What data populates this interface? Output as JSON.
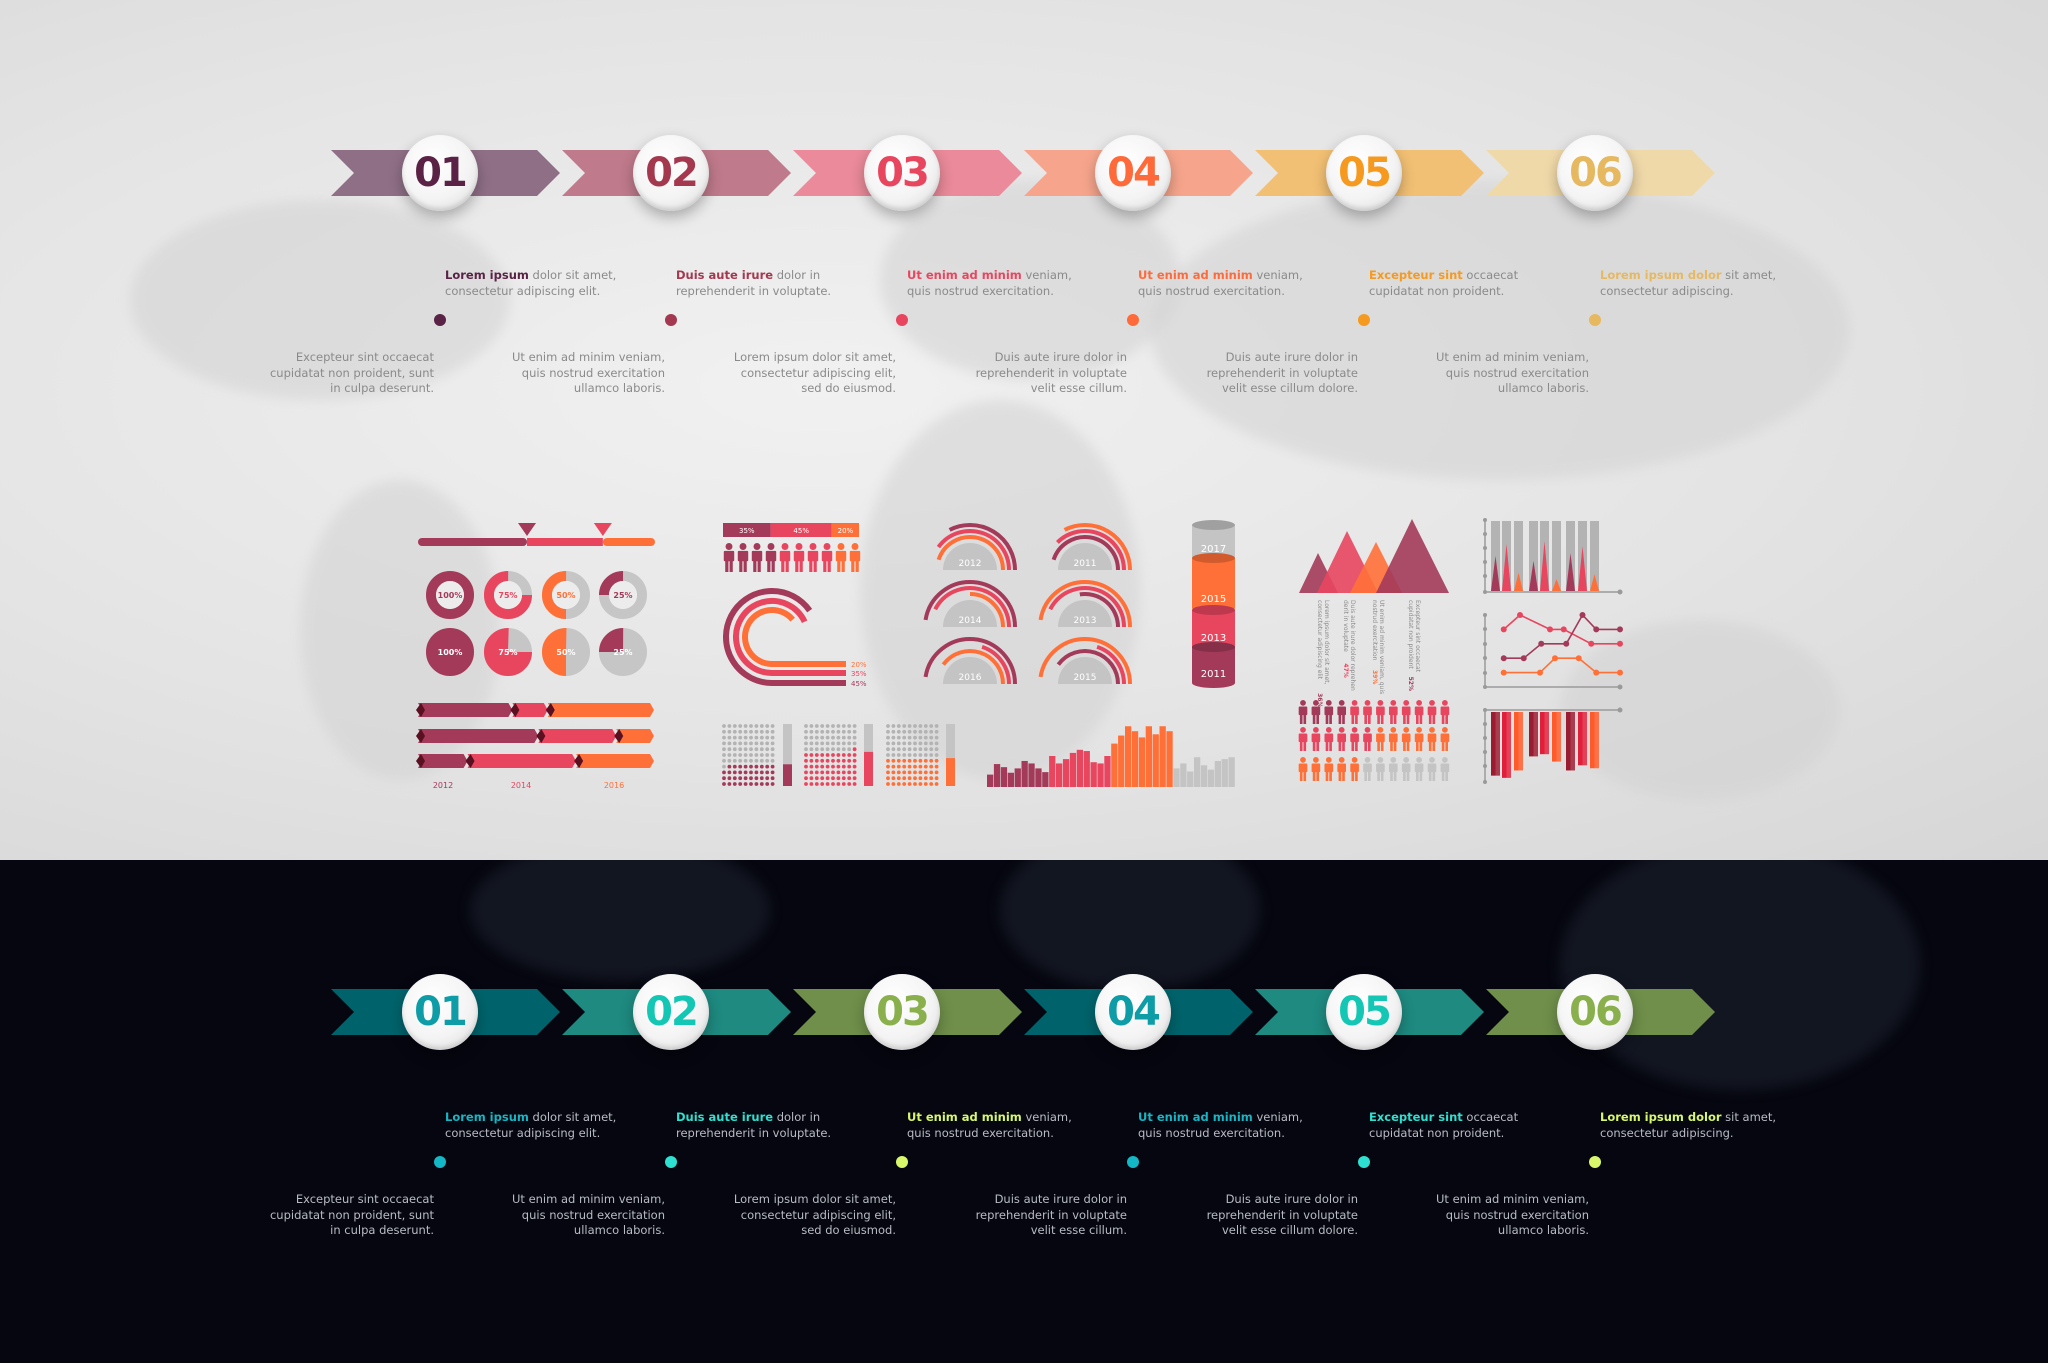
{
  "colors": {
    "dark": "#a33a5a",
    "pink": "#e8465f",
    "orange": "#ff7038",
    "gray": "#c4c4c4",
    "light_bg": "#e6e6e6",
    "dark_bg": "#05060f"
  },
  "light_timeline": {
    "steps": [
      {
        "num": "01",
        "arrow": "#8f6f86",
        "accent": "#5a2346",
        "bold": "Lorem ipsum",
        "rest": " dolor sit amet,\nconsectetur adipiscing elit.",
        "lower": "Excepteur sint occaecat\ncupidatat non proident, sunt\nin culpa deserunt."
      },
      {
        "num": "02",
        "arrow": "#bf7a8b",
        "accent": "#a3384f",
        "bold": "Duis aute irure",
        "rest": " dolor in\nreprehenderit in voluptate.",
        "lower": "Ut enim ad minim veniam,\nquis nostrud exercitation\nullamco laboris."
      },
      {
        "num": "03",
        "arrow": "#ea8a9a",
        "accent": "#e8465f",
        "bold": "Ut enim ad minim",
        "rest": " veniam,\nquis nostrud exercitation.",
        "lower": "Lorem ipsum dolor sit amet,\nconsectetur adipiscing elit,\nsed do eiusmod."
      },
      {
        "num": "04",
        "arrow": "#f6a58c",
        "accent": "#ff6a3a",
        "bold": "Ut enim ad minim",
        "rest": " veniam,\nquis nostrud exercitation.",
        "lower": "Duis aute irure dolor in\nreprehenderit in voluptate\nvelit esse cillum."
      },
      {
        "num": "05",
        "arrow": "#f2c074",
        "accent": "#f59a1e",
        "bold": "Excepteur sint",
        "rest": " occaecat\ncupidatat non proident.",
        "lower": "Duis aute irure dolor in\nreprehenderit in voluptate\nvelit esse cillum dolore."
      },
      {
        "num": "06",
        "arrow": "#f0d9a9",
        "accent": "#e6b860",
        "bold": "Lorem ipsum dolor",
        "rest": " sit amet,\nconsectetur adipiscing.",
        "lower": "Ut enim ad minim veniam,\nquis nostrud exercitation\nullamco laboris."
      }
    ]
  },
  "dark_timeline": {
    "steps": [
      {
        "num": "01",
        "arrow": "#00636b",
        "accent": "#0e9ca6",
        "text_accent": "#13b7c5",
        "bold": "Lorem ipsum",
        "rest": " dolor sit amet,\nconsectetur adipiscing elit.",
        "lower": "Excepteur sint occaecat\ncupidatat non proident, sunt\nin culpa deserunt."
      },
      {
        "num": "02",
        "arrow": "#1e8a80",
        "accent": "#14c7b4",
        "text_accent": "#2ee0d0",
        "bold": "Duis aute irure",
        "rest": " dolor in\nreprehenderit in voluptate.",
        "lower": "Ut enim ad minim veniam,\nquis nostrud exercitation\nullamco laboris."
      },
      {
        "num": "03",
        "arrow": "#6f8f4a",
        "accent": "#8ab04e",
        "text_accent": "#d9f76b",
        "bold": "Ut enim ad minim",
        "rest": " veniam,\nquis nostrud exercitation.",
        "lower": "Lorem ipsum dolor sit amet,\nconsectetur adipiscing elit,\nsed do eiusmod."
      },
      {
        "num": "04",
        "arrow": "#00636b",
        "accent": "#0e9ca6",
        "text_accent": "#13b7c5",
        "bold": "Ut enim ad minim",
        "rest": " veniam,\nquis nostrud exercitation.",
        "lower": "Duis aute irure dolor in\nreprehenderit in voluptate\nvelit esse cillum."
      },
      {
        "num": "05",
        "arrow": "#1e8a80",
        "accent": "#14c7b4",
        "text_accent": "#2ee0d0",
        "bold": "Excepteur sint",
        "rest": " occaecat\ncupidatat non proident.",
        "lower": "Duis aute irure dolor in\nreprehenderit in voluptate\nvelit esse cillum dolore."
      },
      {
        "num": "06",
        "arrow": "#6f8f4a",
        "accent": "#8ab04e",
        "text_accent": "#d9f76b",
        "bold": "Lorem ipsum dolor",
        "rest": " sit amet,\nconsectetur adipiscing.",
        "lower": "Ut enim ad minim veniam,\nquis nostrud exercitation\nullamco laboris."
      }
    ]
  },
  "chart_data": [
    {
      "id": "slider",
      "type": "bar",
      "segments": [
        46,
        32,
        22
      ],
      "markers": 2
    },
    {
      "id": "donuts",
      "type": "pie",
      "style": "donut",
      "values": [
        100,
        75,
        50,
        25
      ],
      "labels": [
        "100%",
        "75%",
        "50%",
        "25%"
      ]
    },
    {
      "id": "pies",
      "type": "pie",
      "values": [
        100,
        75,
        50,
        25
      ],
      "labels": [
        "100%",
        "75%",
        "50%",
        "25%"
      ]
    },
    {
      "id": "stacked-arrows",
      "type": "bar",
      "orientation": "horizontal",
      "stacked": true,
      "rows": [
        [
          40,
          15,
          45
        ],
        [
          51,
          33,
          16
        ],
        [
          21,
          46,
          33
        ]
      ],
      "tick_labels": [
        "2012",
        "2014",
        "2016"
      ]
    },
    {
      "id": "people-bar",
      "type": "bar",
      "stacked": true,
      "values": [
        35,
        45,
        20
      ],
      "labels": [
        "35%",
        "45%",
        "20%"
      ],
      "people_colors": [
        "dark",
        "dark",
        "dark",
        "dark",
        "pink",
        "pink",
        "pink",
        "pink",
        "orange",
        "orange"
      ]
    },
    {
      "id": "arc-bars",
      "type": "bar",
      "style": "radial",
      "values": [
        20,
        35,
        45
      ],
      "labels": [
        "20%",
        "35%",
        "45%"
      ]
    },
    {
      "id": "dot-matrix",
      "type": "bar",
      "values": [
        35,
        55,
        45
      ],
      "series_colors": [
        "dark",
        "pink",
        "orange"
      ]
    },
    {
      "id": "semi-gauges",
      "type": "pie",
      "style": "semi-radial",
      "gauges": [
        {
          "label": "2012",
          "arcs": [
            {
              "c": "orange",
              "v": 0.9
            },
            {
              "c": "pink",
              "v": 0.8
            },
            {
              "c": "dark",
              "v": 0.65
            }
          ]
        },
        {
          "label": "2011",
          "arcs": [
            {
              "c": "dark",
              "v": 0.9
            },
            {
              "c": "pink",
              "v": 0.75
            },
            {
              "c": "orange",
              "v": 0.65
            }
          ]
        },
        {
          "label": "2014",
          "arcs": [
            {
              "c": "orange",
              "v": 0.5
            },
            {
              "c": "pink",
              "v": 0.85
            },
            {
              "c": "dark",
              "v": 0.95
            }
          ]
        },
        {
          "label": "2013",
          "arcs": [
            {
              "c": "dark",
              "v": 0.55
            },
            {
              "c": "pink",
              "v": 0.85
            },
            {
              "c": "orange",
              "v": 0.95
            }
          ]
        },
        {
          "label": "2016",
          "arcs": [
            {
              "c": "orange",
              "v": 0.8
            },
            {
              "c": "pink",
              "v": 0.4
            },
            {
              "c": "dark",
              "v": 0.95
            }
          ]
        },
        {
          "label": "2015",
          "arcs": [
            {
              "c": "dark",
              "v": 0.8
            },
            {
              "c": "pink",
              "v": 0.4
            },
            {
              "c": "orange",
              "v": 0.95
            }
          ]
        }
      ]
    },
    {
      "id": "cylinder-stack",
      "type": "bar",
      "stacked": true,
      "labels": [
        "2017",
        "2015",
        "2013",
        "2011"
      ],
      "values": [
        20,
        30,
        22,
        22
      ],
      "series_colors": [
        "gray",
        "orange",
        "pink",
        "dark"
      ]
    },
    {
      "id": "histogram",
      "type": "bar",
      "series": [
        {
          "color": "dark",
          "values": [
            20,
            37,
            32,
            23,
            30,
            42,
            38,
            30,
            24
          ]
        },
        {
          "color": "pink",
          "values": [
            50,
            38,
            45,
            55,
            60,
            58,
            40,
            38,
            50
          ]
        },
        {
          "color": "orange",
          "values": [
            70,
            83,
            98,
            90,
            80,
            98,
            85,
            98,
            90
          ]
        },
        {
          "color": "gray",
          "values": [
            30,
            38,
            25,
            48,
            35,
            28,
            42,
            45,
            48
          ]
        }
      ],
      "ylim": [
        0,
        100
      ]
    },
    {
      "id": "triangles",
      "type": "area",
      "items": [
        {
          "color": "dark",
          "value": 36,
          "lines": [
            "Lorem ipsum dolor sit amet,",
            "consectetur adipiscing elit"
          ],
          "pct": "36%"
        },
        {
          "color": "pink",
          "value": 47,
          "lines": [
            "Duis aute irure dolor reprehen",
            "derit in voluptate"
          ],
          "pct": "47%"
        },
        {
          "color": "orange",
          "value": 39,
          "lines": [
            "Ut enim ad minim veniam, quis",
            "nostrud exercitation"
          ],
          "pct": "39%"
        },
        {
          "color": "dark",
          "value": 52,
          "lines": [
            "Excepteur sint occaecat",
            "cupidatat non proident"
          ],
          "pct": "52%"
        }
      ]
    },
    {
      "id": "people-grid",
      "type": "table",
      "rows": [
        {
          "dark": 4,
          "pink": 8
        },
        {
          "pink": 6,
          "orange": 6
        },
        {
          "orange": 5,
          "gray": 7
        }
      ]
    },
    {
      "id": "spike-bars",
      "type": "bar",
      "background_max": 100,
      "values": [
        50,
        67,
        26,
        43,
        71,
        17,
        54,
        64,
        24
      ],
      "series_colors": [
        "dark",
        "pink",
        "orange"
      ]
    },
    {
      "id": "line-chart",
      "type": "line",
      "ylim": [
        0,
        5
      ],
      "xlim": [
        0,
        100
      ],
      "series": [
        {
          "color": "pink",
          "x": [
            7,
            20,
            44,
            55,
            77,
            100
          ],
          "y": [
            4,
            5,
            4,
            4,
            3,
            3
          ]
        },
        {
          "color": "dark",
          "x": [
            7,
            23,
            37,
            57,
            70,
            81,
            100
          ],
          "y": [
            2,
            2,
            3,
            3,
            5,
            4,
            4
          ]
        },
        {
          "color": "orange",
          "x": [
            7,
            36,
            48,
            67,
            81,
            100
          ],
          "y": [
            1,
            1,
            2,
            2,
            1,
            1
          ]
        }
      ]
    },
    {
      "id": "hanging-bars",
      "type": "bar",
      "values": [
        86,
        89,
        79,
        60,
        57,
        67,
        79,
        72,
        76
      ],
      "series_colors": [
        "#9b1b30",
        "#e0203a",
        "#ff5a2a"
      ],
      "ylim": [
        0,
        100
      ]
    }
  ]
}
